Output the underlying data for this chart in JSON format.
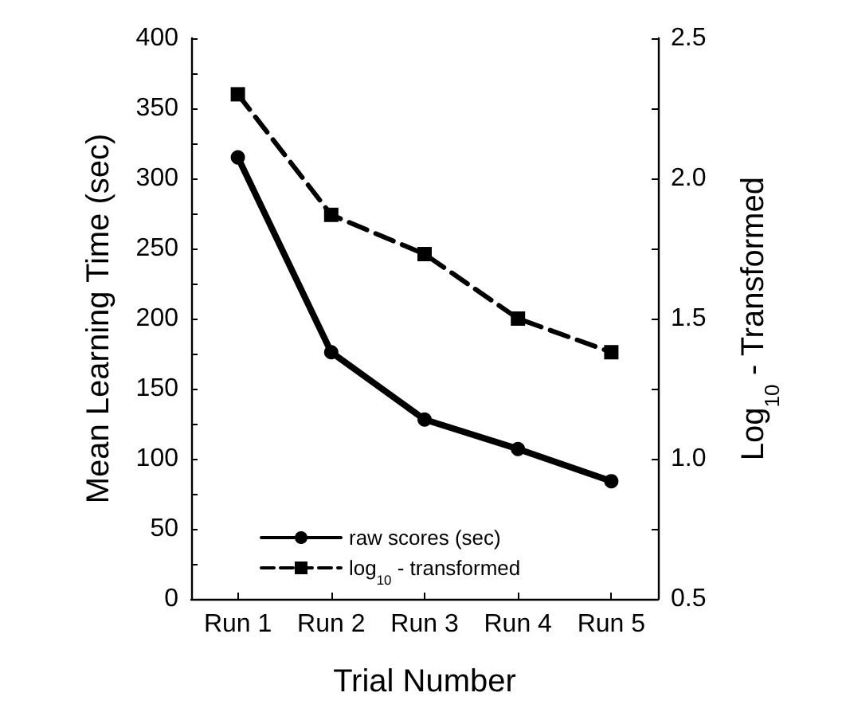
{
  "chart_data": {
    "type": "line",
    "xlabel": "Trial Number",
    "ylabel": "Mean Learning Time (sec)",
    "y2label": "Log$_{10}$ - Transformed",
    "categories": [
      "Run 1",
      "Run 2",
      "Run 3",
      "Run 4",
      "Run 5"
    ],
    "series": [
      {
        "name": "raw scores (sec)",
        "color": "#000000",
        "values": [
          315,
          176,
          128,
          107,
          84
        ],
        "marker": "circle",
        "line_style": "solid"
      },
      {
        "name": "log$_{10}$ - transformed",
        "color": "#000000",
        "values": [
          2.3,
          1.87,
          1.73,
          1.5,
          1.38
        ],
        "axis": "y2",
        "marker": "square",
        "line_style": "dashed"
      }
    ],
    "ylim": [
      0,
      400
    ],
    "yticks": [
      0,
      {
        "value": 25,
        "label": null
      },
      50,
      {
        "value": 75,
        "label": null
      },
      100,
      {
        "value": 125,
        "label": null
      },
      150,
      {
        "value": 175,
        "label": null
      },
      200,
      {
        "value": 225,
        "label": null
      },
      250,
      {
        "value": 275,
        "label": null
      },
      300,
      {
        "value": 325,
        "label": null
      },
      350,
      {
        "value": 375,
        "label": null
      },
      400
    ],
    "y2lim": [
      0.5,
      2.5
    ],
    "y2ticks": [
      0.5,
      {
        "value": 0.75,
        "label": null
      },
      {
        "value": 1,
        "label": "1.0"
      },
      {
        "value": 1.25,
        "label": null
      },
      1.5,
      {
        "value": 1.75,
        "label": null
      },
      {
        "value": 2,
        "label": "2.0"
      },
      {
        "value": 2.25,
        "label": null
      },
      2.5
    ],
    "grid": false,
    "legend": "bottom"
  }
}
